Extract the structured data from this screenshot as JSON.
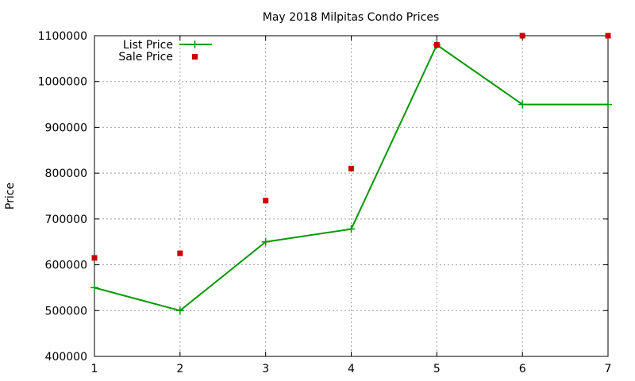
{
  "chart_data": {
    "type": "line",
    "title": "May 2018 Milpitas Condo Prices",
    "xlabel": "",
    "ylabel": "Price",
    "x": [
      1,
      2,
      3,
      4,
      5,
      6,
      7
    ],
    "xlim": [
      1,
      7
    ],
    "ylim": [
      400000,
      1100000
    ],
    "xticks": [
      "1",
      "2",
      "3",
      "4",
      "5",
      "6",
      "7"
    ],
    "yticks": [
      "400000",
      "500000",
      "600000",
      "700000",
      "800000",
      "900000",
      "1000000",
      "1100000"
    ],
    "grid": true,
    "legend_position": "top-left",
    "series": [
      {
        "name": "List Price",
        "style": "line-with-plus-markers",
        "color": "#009900",
        "values": [
          550000,
          500000,
          650000,
          678000,
          1080000,
          950000,
          950000
        ]
      },
      {
        "name": "Sale Price",
        "style": "square-markers",
        "color": "#cc0000",
        "values": [
          615000,
          625000,
          740000,
          810000,
          1080000,
          1100000,
          1100000
        ]
      }
    ]
  }
}
